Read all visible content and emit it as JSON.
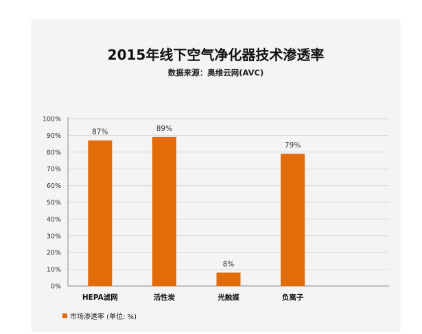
{
  "chart_data": {
    "type": "bar",
    "title": "2015年线下空气净化器技术渗透率",
    "subtitle": "数据来源：奥维云网(AVC)",
    "categories": [
      "HEPA滤网",
      "活性炭",
      "光触媒",
      "负离子"
    ],
    "series": [
      {
        "name": "市场渗透率 (单位: %)",
        "values": [
          87,
          89,
          8,
          79
        ],
        "data_labels": [
          "87%",
          "89%",
          "8%",
          "79%"
        ]
      }
    ],
    "ylim": [
      0,
      100
    ],
    "yticks": [
      "0%",
      "10%",
      "20%",
      "30%",
      "40%",
      "50%",
      "60%",
      "70%",
      "80%",
      "90%",
      "100%"
    ],
    "xlabel": "",
    "ylabel": "",
    "grid": true,
    "legend_position": "bottom-left",
    "colors": {
      "bar": "#e26b0a",
      "grid": "#d9d9d9",
      "axis": "#888888",
      "background": "#f4f4f4"
    }
  }
}
